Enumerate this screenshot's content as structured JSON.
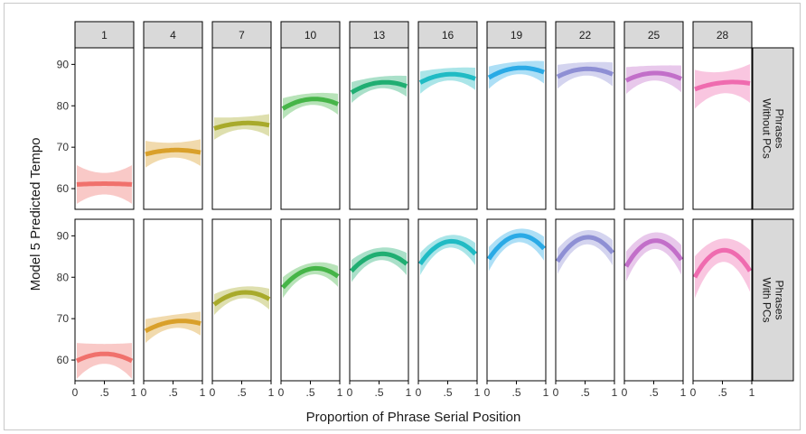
{
  "chart_data": {
    "type": "line",
    "ylabel": "Model 5 Predicted Tempo",
    "xlabel": "Proportion of Phrase Serial Position",
    "column_facets": [
      "1",
      "4",
      "7",
      "10",
      "13",
      "16",
      "19",
      "22",
      "25",
      "28"
    ],
    "row_facets": [
      "Phrases Without PCs",
      "Phrases With PCs"
    ],
    "row_facet_lines": [
      [
        "Phrases",
        "Without PCs"
      ],
      [
        "Phrases",
        "With PCs"
      ]
    ],
    "x_ticks": [
      "0",
      ".5",
      "1"
    ],
    "x_tick_values": [
      0,
      0.5,
      1
    ],
    "xlim": [
      0,
      1
    ],
    "y_ticks": [
      60,
      70,
      80,
      90
    ],
    "ylim": [
      55,
      94
    ],
    "grid": false,
    "series_colors": [
      "#F0716C",
      "#D9A02A",
      "#A8AA2B",
      "#46B548",
      "#20AE72",
      "#20BBC4",
      "#2AAAE6",
      "#8E8FD4",
      "#C26FC9",
      "#EF6BAF"
    ],
    "curves": [
      [
        {
          "y_start": 61.0,
          "y_peak": 61.2,
          "y_end": 61.0,
          "ci": 2.6
        },
        {
          "y_start": 68.3,
          "y_peak": 69.3,
          "y_end": 68.7,
          "ci": 1.8
        },
        {
          "y_start": 74.5,
          "y_peak": 75.8,
          "y_end": 75.3,
          "ci": 1.5
        },
        {
          "y_start": 79.3,
          "y_peak": 81.6,
          "y_end": 80.4,
          "ci": 1.4
        },
        {
          "y_start": 83.2,
          "y_peak": 85.6,
          "y_end": 84.7,
          "ci": 1.4
        },
        {
          "y_start": 85.6,
          "y_peak": 87.6,
          "y_end": 86.5,
          "ci": 1.5
        },
        {
          "y_start": 86.8,
          "y_peak": 89.1,
          "y_end": 88.1,
          "ci": 1.5
        },
        {
          "y_start": 87.0,
          "y_peak": 88.9,
          "y_end": 87.6,
          "ci": 1.6
        },
        {
          "y_start": 86.1,
          "y_peak": 87.9,
          "y_end": 86.5,
          "ci": 1.8
        },
        {
          "y_start": 84.0,
          "y_peak": 85.6,
          "y_end": 85.4,
          "ci": 2.6
        }
      ],
      [
        {
          "y_start": 59.8,
          "y_peak": 61.5,
          "y_end": 59.8,
          "ci": 2.4
        },
        {
          "y_start": 67.0,
          "y_peak": 69.3,
          "y_end": 68.8,
          "ci": 1.6
        },
        {
          "y_start": 73.4,
          "y_peak": 76.3,
          "y_end": 74.7,
          "ci": 1.4
        },
        {
          "y_start": 77.5,
          "y_peak": 82.0,
          "y_end": 80.2,
          "ci": 1.4
        },
        {
          "y_start": 81.5,
          "y_peak": 85.6,
          "y_end": 83.2,
          "ci": 1.5
        },
        {
          "y_start": 83.2,
          "y_peak": 88.6,
          "y_end": 85.6,
          "ci": 1.5
        },
        {
          "y_start": 84.4,
          "y_peak": 90.0,
          "y_end": 86.9,
          "ci": 1.6
        },
        {
          "y_start": 83.8,
          "y_peak": 89.6,
          "y_end": 85.9,
          "ci": 1.7
        },
        {
          "y_start": 82.6,
          "y_peak": 88.8,
          "y_end": 84.2,
          "ci": 2.0
        },
        {
          "y_start": 80.0,
          "y_peak": 86.5,
          "y_end": 81.5,
          "ci": 2.8
        }
      ]
    ]
  }
}
